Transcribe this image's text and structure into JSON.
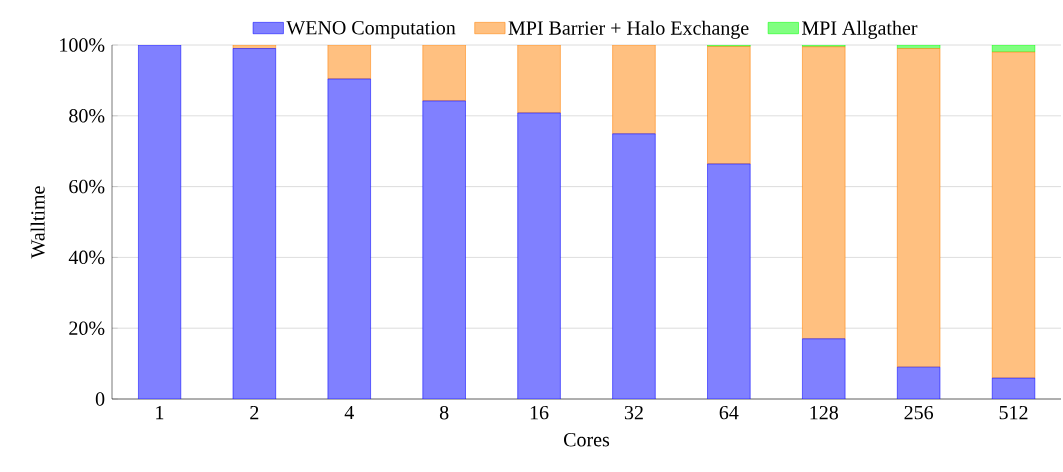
{
  "chart_data": {
    "type": "bar",
    "stacked": true,
    "xlabel": "Cores",
    "ylabel": "Walltime",
    "categories": [
      "1",
      "2",
      "4",
      "8",
      "16",
      "32",
      "64",
      "128",
      "256",
      "512"
    ],
    "series": [
      {
        "name": "WENO Computation",
        "color": "#8080ff",
        "values": [
          100,
          99,
          90.4,
          84.2,
          80.8,
          74.9,
          66.4,
          17,
          9,
          5.9
        ]
      },
      {
        "name": "MPI Barrier + Halo Exchange",
        "color": "#ffc080",
        "values": [
          0,
          1,
          9.6,
          15.8,
          19.2,
          25.1,
          33.2,
          82.5,
          90,
          92.1
        ]
      },
      {
        "name": "MPI Allgather",
        "color": "#80ff80",
        "values": [
          0,
          0,
          null,
          null,
          null,
          null,
          0.4,
          0.5,
          1,
          2
        ]
      }
    ],
    "ylim": [
      0,
      100
    ],
    "yticks": [
      0,
      {
        "value": 20,
        "label": "20%"
      },
      {
        "value": 40,
        "label": "40%"
      },
      {
        "value": 60,
        "label": "60%"
      },
      {
        "value": 80,
        "label": "80%"
      },
      {
        "value": 100,
        "label": "100%"
      }
    ],
    "grid": "y",
    "legend": "top"
  }
}
